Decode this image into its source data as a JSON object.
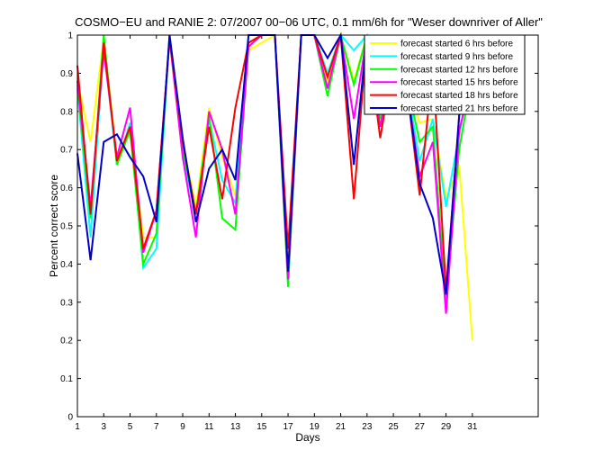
{
  "chart_data": {
    "type": "line",
    "title": "COSMO−EU and RANIE 2: 07/2007 00−06 UTC, 0.1 mm/6h for \"Weser downriver of Aller\"",
    "xlabel": "Days",
    "ylabel": "Percent correct score",
    "xlim": [
      1,
      36
    ],
    "ylim": [
      0,
      1
    ],
    "xticks": [
      1,
      3,
      5,
      7,
      9,
      11,
      13,
      15,
      17,
      19,
      21,
      23,
      25,
      27,
      29,
      31
    ],
    "yticks": [
      0,
      0.1,
      0.2,
      0.3,
      0.4,
      0.5,
      0.6,
      0.7,
      0.8,
      0.9,
      1
    ],
    "legend_position": "top-right",
    "x": [
      1,
      2,
      3,
      4,
      5,
      6,
      7,
      8,
      9,
      10,
      11,
      12,
      13,
      14,
      15,
      16,
      17,
      18,
      19,
      20,
      21,
      22,
      23,
      24,
      25,
      26,
      27,
      28,
      29,
      30,
      31
    ],
    "series": [
      {
        "name": "forecast started 6 hrs before",
        "color": "#ffff00",
        "values": [
          0.88,
          0.72,
          0.99,
          0.68,
          0.75,
          0.47,
          0.47,
          0.99,
          0.72,
          0.55,
          0.81,
          0.68,
          0.58,
          0.96,
          0.98,
          1.0,
          0.4,
          1.0,
          1.0,
          0.88,
          1.0,
          0.88,
          1.0,
          0.83,
          0.94,
          0.88,
          0.77,
          0.78,
          0.57,
          0.66,
          0.2
        ]
      },
      {
        "name": "forecast started 9 hrs before",
        "color": "#00ffff",
        "values": [
          0.86,
          0.47,
          0.97,
          0.66,
          0.77,
          0.39,
          0.44,
          1.0,
          0.68,
          0.53,
          0.78,
          0.62,
          0.56,
          1.0,
          1.0,
          1.0,
          0.35,
          1.0,
          1.0,
          0.9,
          1.0,
          0.96,
          1.0,
          0.8,
          0.92,
          0.88,
          0.67,
          0.78,
          0.55,
          0.74,
          0.92
        ]
      },
      {
        "name": "forecast started 12 hrs before",
        "color": "#00ff00",
        "values": [
          0.87,
          0.52,
          1.0,
          0.66,
          0.75,
          0.4,
          0.48,
          1.0,
          0.7,
          0.53,
          0.79,
          0.52,
          0.49,
          0.98,
          1.0,
          1.0,
          0.34,
          1.0,
          1.0,
          0.84,
          1.0,
          0.87,
          1.0,
          0.78,
          0.93,
          0.88,
          0.72,
          0.76,
          0.3,
          0.7,
          0.9
        ]
      },
      {
        "name": "forecast started 15 hrs before",
        "color": "#ff00ff",
        "values": [
          0.88,
          0.55,
          0.96,
          0.68,
          0.81,
          0.43,
          0.54,
          0.99,
          0.68,
          0.47,
          0.8,
          0.7,
          0.53,
          0.97,
          1.0,
          1.0,
          0.36,
          1.0,
          1.0,
          0.86,
          1.0,
          0.78,
          1.0,
          0.76,
          0.93,
          0.87,
          0.63,
          0.72,
          0.27,
          0.75,
          0.89
        ]
      },
      {
        "name": "forecast started 18 hrs before",
        "color": "#ff0000",
        "values": [
          0.92,
          0.53,
          0.98,
          0.67,
          0.76,
          0.44,
          0.54,
          0.99,
          0.72,
          0.53,
          0.76,
          0.57,
          0.81,
          0.98,
          1.0,
          1.0,
          0.44,
          1.0,
          1.0,
          0.89,
          1.0,
          0.57,
          1.0,
          0.73,
          0.94,
          0.87,
          0.58,
          0.92,
          0.33,
          0.79,
          0.89
        ]
      },
      {
        "name": "forecast started 21 hrs before",
        "color": "#0000c8",
        "values": [
          0.69,
          0.41,
          0.72,
          0.74,
          0.68,
          0.63,
          0.51,
          1.0,
          0.73,
          0.51,
          0.65,
          0.7,
          0.62,
          1.0,
          1.0,
          1.0,
          0.38,
          1.0,
          1.0,
          0.94,
          1.0,
          0.66,
          1.0,
          0.81,
          0.85,
          0.87,
          0.61,
          0.52,
          0.32,
          0.79,
          0.89
        ]
      }
    ]
  }
}
